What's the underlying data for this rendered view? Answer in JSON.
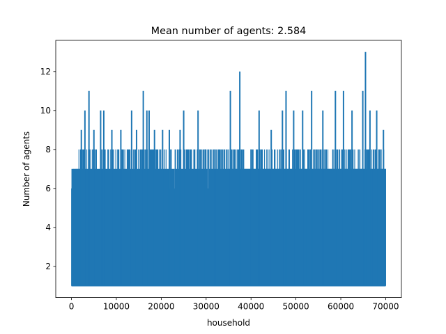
{
  "chart_data": {
    "type": "line",
    "title": "Mean number of agents: 2.584",
    "xlabel": "household",
    "ylabel": "Number of agents",
    "xlim": [
      -3500,
      73500
    ],
    "ylim": [
      0.4,
      13.6
    ],
    "xticks": [
      0,
      10000,
      20000,
      30000,
      40000,
      50000,
      60000,
      70000
    ],
    "xtick_labels": [
      "0",
      "10000",
      "20000",
      "30000",
      "40000",
      "50000",
      "60000",
      "70000"
    ],
    "yticks": [
      2,
      4,
      6,
      8,
      10,
      12
    ],
    "ytick_labels": [
      "2",
      "4",
      "6",
      "8",
      "10",
      "12"
    ],
    "grid": false,
    "n_points": 70000,
    "value_range": [
      1,
      13
    ],
    "series": [
      {
        "color": "#1f77b4",
        "x_start": 0,
        "x_end": 69999,
        "bands": [
          {
            "x": [
              0,
              2500
            ],
            "upper": 7
          },
          {
            "x": [
              2500,
              35000
            ],
            "upper": 6
          },
          {
            "x": [
              35000,
              45000
            ],
            "upper": 7
          },
          {
            "x": [
              45000,
              69999
            ],
            "upper": 7
          }
        ],
        "spikes": [
          {
            "x": 2200,
            "y": 9
          },
          {
            "x": 3000,
            "y": 10
          },
          {
            "x": 3900,
            "y": 11
          },
          {
            "x": 5000,
            "y": 9
          },
          {
            "x": 6500,
            "y": 10
          },
          {
            "x": 7200,
            "y": 10
          },
          {
            "x": 9000,
            "y": 9
          },
          {
            "x": 11000,
            "y": 9
          },
          {
            "x": 13400,
            "y": 10
          },
          {
            "x": 14500,
            "y": 9
          },
          {
            "x": 16000,
            "y": 11
          },
          {
            "x": 16800,
            "y": 10
          },
          {
            "x": 17300,
            "y": 10
          },
          {
            "x": 18500,
            "y": 9
          },
          {
            "x": 20300,
            "y": 9
          },
          {
            "x": 21800,
            "y": 9
          },
          {
            "x": 24200,
            "y": 9
          },
          {
            "x": 25000,
            "y": 10
          },
          {
            "x": 28200,
            "y": 10
          },
          {
            "x": 29800,
            "y": 8
          },
          {
            "x": 32000,
            "y": 8
          },
          {
            "x": 35400,
            "y": 11
          },
          {
            "x": 37500,
            "y": 12
          },
          {
            "x": 40000,
            "y": 8
          },
          {
            "x": 41800,
            "y": 10
          },
          {
            "x": 44500,
            "y": 9
          },
          {
            "x": 47000,
            "y": 10
          },
          {
            "x": 47800,
            "y": 11
          },
          {
            "x": 49500,
            "y": 10
          },
          {
            "x": 51500,
            "y": 10
          },
          {
            "x": 53500,
            "y": 11
          },
          {
            "x": 56000,
            "y": 10
          },
          {
            "x": 58800,
            "y": 11
          },
          {
            "x": 60600,
            "y": 11
          },
          {
            "x": 62500,
            "y": 10
          },
          {
            "x": 64900,
            "y": 11
          },
          {
            "x": 65500,
            "y": 13
          },
          {
            "x": 66500,
            "y": 10
          },
          {
            "x": 68000,
            "y": 10
          },
          {
            "x": 69500,
            "y": 9
          }
        ]
      }
    ]
  }
}
